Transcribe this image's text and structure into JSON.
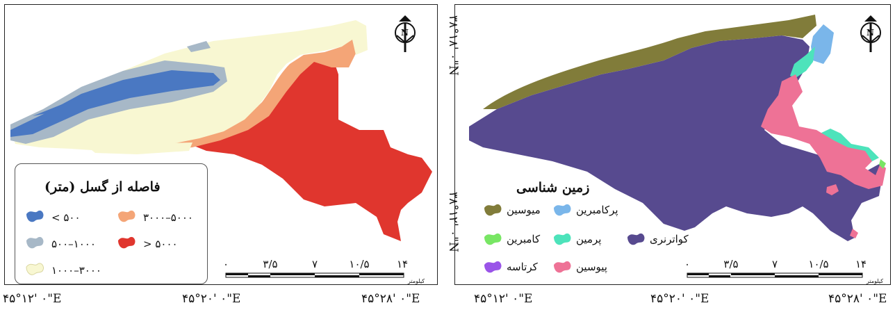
{
  "left_map": {
    "legend": {
      "title": "فاصله از گسل (متر)",
      "items": [
        {
          "label": "< ۵۰۰",
          "color": "#4a78c2"
        },
        {
          "label": "۵۰۰–۱۰۰۰",
          "color": "#a7b8c7"
        },
        {
          "label": "۱۰۰۰–۳۰۰۰",
          "color": "#f8f7d2"
        },
        {
          "label": "۳۰۰۰–۵۰۰۰",
          "color": "#f4a577"
        },
        {
          "label": "> ۵۰۰۰",
          "color": "#e0362e"
        }
      ]
    },
    "scale": {
      "ticks": [
        "۰",
        "۳/۵",
        "۷",
        "۱۰/۵",
        "۱۴"
      ],
      "unit": "کیلومتر"
    },
    "bottom_coords": [
      "۴۵°۱۲' ۰\"E",
      "۴۵°۲۰' ۰\"E",
      "۴۵°۲۸' ۰\"E"
    ],
    "north_arrow_label": "N"
  },
  "right_map": {
    "legend": {
      "title": "زمین شناسی",
      "items": [
        {
          "label": "میوسین",
          "color": "#817c3a"
        },
        {
          "label": "پرکامبرین",
          "color": "#7ab6ea"
        },
        {
          "label": "کامبرین",
          "color": "#78e664"
        },
        {
          "label": "پرمین",
          "color": "#4de3bb"
        },
        {
          "label": "کواترنری",
          "color": "#574a8f"
        },
        {
          "label": "کرتاسه",
          "color": "#9a54e8"
        },
        {
          "label": "پیوسین",
          "color": "#ee7296"
        }
      ]
    },
    "scale": {
      "ticks": [
        "۰",
        "۳/۵",
        "۷",
        "۱۰/۵",
        "۱۴"
      ],
      "unit": "کیلومتر"
    },
    "bottom_coords": [
      "۴۵°۱۲' ۰\"E",
      "۴۵°۲۰' ۰\"E",
      "۴۵°۲۸' ۰\"E"
    ],
    "left_coords": [
      "۳۸°۱۸' ۰\"N",
      "۳۸°۱۲' ۰\"N"
    ],
    "north_arrow_label": "N"
  }
}
